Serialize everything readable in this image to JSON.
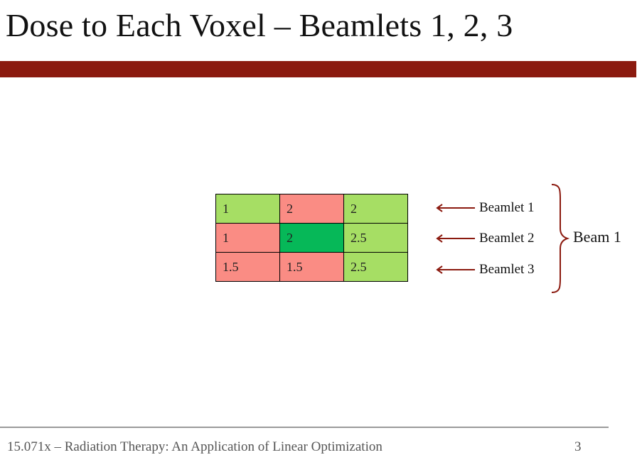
{
  "slide": {
    "title": "Dose to Each Voxel – Beamlets 1, 2, 3"
  },
  "grid": {
    "rows": [
      {
        "cells": [
          {
            "value": "1",
            "color": "#a6de64"
          },
          {
            "value": "2",
            "color": "#fa8c84"
          },
          {
            "value": "2",
            "color": "#a6de64"
          }
        ]
      },
      {
        "cells": [
          {
            "value": "1",
            "color": "#fa8c84"
          },
          {
            "value": "2",
            "color": "#06b858"
          },
          {
            "value": "2.5",
            "color": "#a6de64"
          }
        ]
      },
      {
        "cells": [
          {
            "value": "1.5",
            "color": "#fa8c84"
          },
          {
            "value": "1.5",
            "color": "#fa8c84"
          },
          {
            "value": "2.5",
            "color": "#a6de64"
          }
        ]
      }
    ]
  },
  "beamlets": [
    {
      "label": "Beamlet 1"
    },
    {
      "label": "Beamlet 2"
    },
    {
      "label": "Beamlet 3"
    }
  ],
  "beam": {
    "label": "Beam 1"
  },
  "footer": {
    "course": "15.071x – Radiation Therapy: An Application of Linear Optimization",
    "page_number": "3"
  },
  "colors": {
    "accent_bar": "#8b1a0f",
    "arrow": "#8b1a0f"
  }
}
